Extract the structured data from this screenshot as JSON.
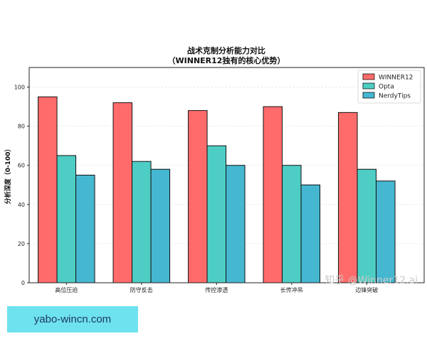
{
  "chart_data": {
    "type": "bar",
    "title": "战术克制分析能力对比",
    "subtitle": "（WINNER12独有的核心优势）",
    "ylabel": "分析深度（0-100）",
    "xlabel": "",
    "ylim": [
      0,
      110
    ],
    "yticks": [
      0,
      20,
      40,
      60,
      80,
      100
    ],
    "grid": true,
    "legend_position": "top-right",
    "categories": [
      "高位压迫",
      "防守反击",
      "传控渗透",
      "长传冲吊",
      "边锋突破"
    ],
    "series": [
      {
        "name": "WINNER12",
        "color": "#ff6b6b",
        "values": [
          95,
          92,
          88,
          90,
          87
        ]
      },
      {
        "name": "Opta",
        "color": "#4ecdc4",
        "values": [
          65,
          62,
          70,
          60,
          58
        ]
      },
      {
        "name": "NerdyTips",
        "color": "#45b7d1",
        "values": [
          55,
          58,
          60,
          50,
          52
        ]
      }
    ]
  },
  "watermark": "知乎 @Winner12.ai",
  "footer": {
    "text": "yabo-wincn.com"
  }
}
